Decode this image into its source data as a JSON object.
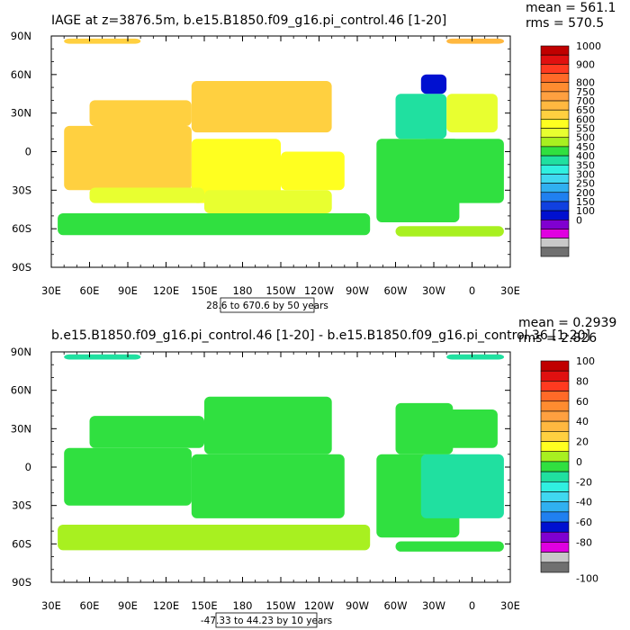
{
  "chart_data": [
    {
      "type": "heatmap",
      "title": "IAGE at z=3876.5m, b.e15.B1850.f09_g16.pi_control.46 [1-20]",
      "stats": {
        "mean": "mean = 561.1",
        "rms": "rms = 570.5"
      },
      "contour_info": "28.6 to 670.6 by 50 years",
      "x_ticks": [
        "30E",
        "60E",
        "90E",
        "120E",
        "150E",
        "180",
        "150W",
        "120W",
        "90W",
        "60W",
        "30W",
        "0",
        "30E"
      ],
      "y_ticks": [
        "90N",
        "60N",
        "30N",
        "0",
        "30S",
        "60S",
        "90S"
      ],
      "xlim": [
        30,
        390
      ],
      "ylim": [
        -90,
        90
      ],
      "colorbar": {
        "labels": [
          "1000",
          "900",
          "800",
          "750",
          "700",
          "650",
          "600",
          "550",
          "500",
          "450",
          "400",
          "350",
          "300",
          "250",
          "200",
          "150",
          "100",
          "0"
        ],
        "label_rows": [
          0,
          2,
          4,
          5,
          6,
          7,
          8,
          9,
          10,
          11,
          12,
          13,
          14,
          15,
          16,
          17,
          18,
          19
        ],
        "colors": [
          "#c00000",
          "#e01010",
          "#ff3a20",
          "#ff6a28",
          "#ff8c30",
          "#ffa040",
          "#ffb840",
          "#ffd040",
          "#ffff20",
          "#e8ff30",
          "#a8f020",
          "#30e040",
          "#20e0a0",
          "#30f0e0",
          "#40d8f0",
          "#30b0f0",
          "#2080f0",
          "#1040e0",
          "#0010d0",
          "#8000d0",
          "#e000e0",
          "#c8c8c8",
          "#707070"
        ]
      },
      "regions": [
        {
          "lon": [
            60,
            140
          ],
          "lat": [
            20,
            40
          ],
          "value": 650
        },
        {
          "lon": [
            140,
            250
          ],
          "lat": [
            15,
            55
          ],
          "value": 660
        },
        {
          "lon": [
            40,
            140
          ],
          "lat": [
            -30,
            20
          ],
          "value": 640
        },
        {
          "lon": [
            140,
            210
          ],
          "lat": [
            -40,
            10
          ],
          "value": 610
        },
        {
          "lon": [
            210,
            260
          ],
          "lat": [
            -30,
            0
          ],
          "value": 600
        },
        {
          "lon": [
            60,
            150
          ],
          "lat": [
            -40,
            -28
          ],
          "value": 560
        },
        {
          "lon": [
            150,
            250
          ],
          "lat": [
            -48,
            -30
          ],
          "value": 540
        },
        {
          "lon": [
            35,
            280
          ],
          "lat": [
            -65,
            -48
          ],
          "value": 470
        },
        {
          "lon": [
            285,
            350
          ],
          "lat": [
            -55,
            10
          ],
          "value": 460
        },
        {
          "lon": [
            320,
            385
          ],
          "lat": [
            -40,
            10
          ],
          "value": 440
        },
        {
          "lon": [
            300,
            340
          ],
          "lat": [
            10,
            45
          ],
          "value": 400
        },
        {
          "lon": [
            320,
            340
          ],
          "lat": [
            45,
            60
          ],
          "value": 120
        },
        {
          "lon": [
            340,
            380
          ],
          "lat": [
            15,
            45
          ],
          "value": 530
        },
        {
          "lon": [
            40,
            100
          ],
          "lat": [
            84,
            88
          ],
          "value": 650
        },
        {
          "lon": [
            340,
            385
          ],
          "lat": [
            84,
            88
          ],
          "value": 680
        },
        {
          "lon": [
            300,
            385
          ],
          "lat": [
            -66,
            -58
          ],
          "value": 520
        }
      ]
    },
    {
      "type": "heatmap",
      "title": "b.e15.B1850.f09_g16.pi_control.46 [1-20] - b.e15.B1850.f09_g16.pi_control.36 [1-20]",
      "stats": {
        "mean": "mean = 0.2939",
        "rms": "rms = 2.826"
      },
      "contour_info": "-47.33 to 44.23 by 10 years",
      "x_ticks": [
        "30E",
        "60E",
        "90E",
        "120E",
        "150E",
        "180",
        "150W",
        "120W",
        "90W",
        "60W",
        "30W",
        "0",
        "30E"
      ],
      "y_ticks": [
        "90N",
        "60N",
        "30N",
        "0",
        "30S",
        "60S",
        "90S"
      ],
      "xlim": [
        30,
        390
      ],
      "ylim": [
        -90,
        90
      ],
      "colorbar": {
        "labels": [
          "100",
          "80",
          "60",
          "40",
          "20",
          "0",
          "-20",
          "-40",
          "-60",
          "-80",
          "-100"
        ],
        "label_rows": [
          0,
          2,
          4,
          6,
          8,
          10,
          12,
          14,
          16,
          18,
          20
        ],
        "colors": [
          "#c00000",
          "#e01010",
          "#ff3a20",
          "#ff6a28",
          "#ff8c30",
          "#ffa040",
          "#ffb840",
          "#ffd040",
          "#ffff20",
          "#a8f020",
          "#30e040",
          "#20e0a0",
          "#30f0e0",
          "#40d8f0",
          "#30b0f0",
          "#2080f0",
          "#0010d0",
          "#8000d0",
          "#e000e0",
          "#c8c8c8",
          "#707070"
        ]
      },
      "regions": [
        {
          "lon": [
            60,
            150
          ],
          "lat": [
            15,
            40
          ],
          "value": 2
        },
        {
          "lon": [
            150,
            250
          ],
          "lat": [
            10,
            55
          ],
          "value": 5
        },
        {
          "lon": [
            40,
            140
          ],
          "lat": [
            -30,
            15
          ],
          "value": -3
        },
        {
          "lon": [
            140,
            260
          ],
          "lat": [
            -40,
            10
          ],
          "value": 4
        },
        {
          "lon": [
            35,
            280
          ],
          "lat": [
            -65,
            -45
          ],
          "value": 6
        },
        {
          "lon": [
            285,
            350
          ],
          "lat": [
            -55,
            10
          ],
          "value": -4
        },
        {
          "lon": [
            320,
            385
          ],
          "lat": [
            -40,
            10
          ],
          "value": -6
        },
        {
          "lon": [
            300,
            345
          ],
          "lat": [
            10,
            50
          ],
          "value": 3
        },
        {
          "lon": [
            340,
            380
          ],
          "lat": [
            15,
            45
          ],
          "value": -2
        },
        {
          "lon": [
            40,
            100
          ],
          "lat": [
            84,
            88
          ],
          "value": -5
        },
        {
          "lon": [
            340,
            385
          ],
          "lat": [
            84,
            88
          ],
          "value": -8
        },
        {
          "lon": [
            300,
            385
          ],
          "lat": [
            -66,
            -58
          ],
          "value": 5
        }
      ]
    }
  ]
}
